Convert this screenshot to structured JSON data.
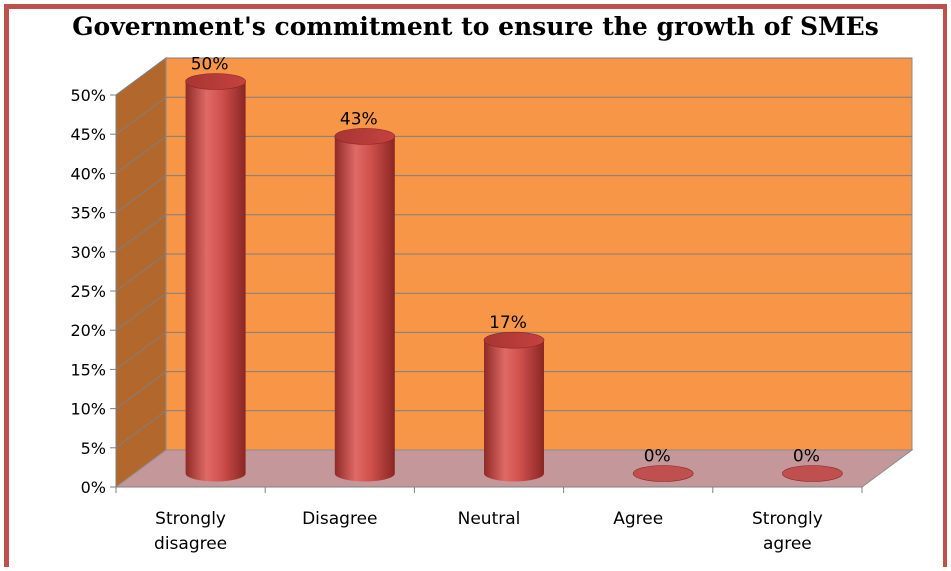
{
  "chart_data": {
    "type": "bar",
    "title": "Government's commitment to ensure the growth of SMEs",
    "categories": [
      "Strongly disagree",
      "Disagree",
      "Neutral",
      "Agree",
      "Strongly agree"
    ],
    "category_lines": [
      [
        "Strongly",
        "disagree"
      ],
      [
        "Disagree"
      ],
      [
        "Neutral"
      ],
      [
        "Agree"
      ],
      [
        "Strongly",
        "agree"
      ]
    ],
    "values": [
      50,
      43,
      17,
      0,
      0
    ],
    "data_labels": [
      "50%",
      "43%",
      "17%",
      "0%",
      "0%"
    ],
    "yticks": [
      "0%",
      "5%",
      "10%",
      "15%",
      "20%",
      "25%",
      "30%",
      "35%",
      "40%",
      "45%",
      "50%"
    ],
    "ylim": [
      0,
      50
    ],
    "grid": true,
    "style": "3d-cylinder",
    "colors": {
      "bar": "#c0504d",
      "back_wall": "#f79646",
      "side_wall": "#b2672d",
      "floor": "#c4989a",
      "frame": "#c0504d"
    }
  }
}
